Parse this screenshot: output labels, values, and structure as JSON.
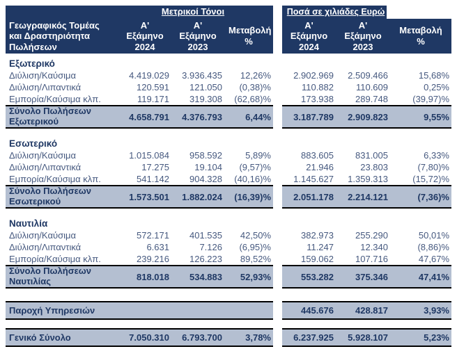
{
  "header": {
    "row_label": "Γεωγραφικός Τομέας και Δραστηριότητα Πωλήσεων",
    "group_left": "Μετρικοί Τόνοι",
    "group_right": "Ποσά σε χιλιάδες Ευρώ",
    "cols": [
      "Α' Εξάμηνο 2024",
      "Α' Εξάμηνο 2023",
      "Μεταβολή %"
    ]
  },
  "colors": {
    "header_bg": "#1f3864",
    "header_text": "#ffffff",
    "data_text": "#46597f",
    "emphasis_text": "#1f3864",
    "total_band_bg": "#b4bfd1",
    "total_band_border": "#000000"
  },
  "sections": [
    {
      "title": "Εξωτερικό",
      "rows": [
        {
          "label": "Διύλιση/Καύσιμα",
          "mt_2024": "4.419.029",
          "mt_2023": "3.936.435",
          "mt_chg": "12,26%",
          "eur_2024": "2.902.969",
          "eur_2023": "2.509.466",
          "eur_chg": "15,68%"
        },
        {
          "label": "Διύλιση/Λιπαντικά",
          "mt_2024": "120.591",
          "mt_2023": "121.050",
          "mt_chg": "(0,38)%",
          "eur_2024": "110.882",
          "eur_2023": "110.609",
          "eur_chg": "0,25%"
        },
        {
          "label": "Εμπορία/Καύσιμα κλπ.",
          "mt_2024": "119.171",
          "mt_2023": "319.308",
          "mt_chg": "(62,68)%",
          "eur_2024": "173.938",
          "eur_2023": "289.748",
          "eur_chg": "(39,97)%"
        }
      ],
      "total": {
        "label": "Σύνολο Πωλήσεων Εξωτερικού",
        "mt_2024": "4.658.791",
        "mt_2023": "4.376.793",
        "mt_chg": "6,44%",
        "eur_2024": "3.187.789",
        "eur_2023": "2.909.823",
        "eur_chg": "9,55%"
      }
    },
    {
      "title": "Εσωτερικό",
      "rows": [
        {
          "label": "Διύλιση/Καύσιμα",
          "mt_2024": "1.015.084",
          "mt_2023": "958.592",
          "mt_chg": "5,89%",
          "eur_2024": "883.605",
          "eur_2023": "831.005",
          "eur_chg": "6,33%"
        },
        {
          "label": "Διύλιση/Λιπαντικά",
          "mt_2024": "17.275",
          "mt_2023": "19.104",
          "mt_chg": "(9,57)%",
          "eur_2024": "21.946",
          "eur_2023": "23.803",
          "eur_chg": "(7,80)%"
        },
        {
          "label": "Εμπορία/Καύσιμα κλπ.",
          "mt_2024": "541.142",
          "mt_2023": "904.328",
          "mt_chg": "(40,16)%",
          "eur_2024": "1.145.627",
          "eur_2023": "1.359.313",
          "eur_chg": "(15,72)%"
        }
      ],
      "total": {
        "label": "Σύνολο Πωλήσεων Εσωτερικού",
        "mt_2024": "1.573.501",
        "mt_2023": "1.882.024",
        "mt_chg": "(16,39)%",
        "eur_2024": "2.051.178",
        "eur_2023": "2.214.121",
        "eur_chg": "(7,36)%"
      }
    },
    {
      "title": "Ναυτιλία",
      "rows": [
        {
          "label": "Διύλιση/Καύσιμα",
          "mt_2024": "572.171",
          "mt_2023": "401.535",
          "mt_chg": "42,50%",
          "eur_2024": "382.973",
          "eur_2023": "255.290",
          "eur_chg": "50,01%"
        },
        {
          "label": "Διύλιση/Λιπαντικά",
          "mt_2024": "6.631",
          "mt_2023": "7.126",
          "mt_chg": "(6,95)%",
          "eur_2024": "11.247",
          "eur_2023": "12.340",
          "eur_chg": "(8,86)%"
        },
        {
          "label": "Εμπορία/Καύσιμα κλπ.",
          "mt_2024": "239.216",
          "mt_2023": "126.223",
          "mt_chg": "89,52%",
          "eur_2024": "159.062",
          "eur_2023": "107.716",
          "eur_chg": "47,67%"
        }
      ],
      "total": {
        "label": "Σύνολο Πωλήσεων Ναυτιλίας",
        "mt_2024": "818.018",
        "mt_2023": "534.883",
        "mt_chg": "52,93%",
        "eur_2024": "553.282",
        "eur_2023": "375.346",
        "eur_chg": "47,41%"
      }
    }
  ],
  "service": {
    "label": "Παροχή Υπηρεσιών",
    "eur_2024": "445.676",
    "eur_2023": "428.817",
    "eur_chg": "3,93%"
  },
  "grand_total": {
    "label": "Γενικό Σύνολο",
    "mt_2024": "7.050.310",
    "mt_2023": "6.793.700",
    "mt_chg": "3,78%",
    "eur_2024": "6.237.925",
    "eur_2023": "5.928.107",
    "eur_chg": "5,23%"
  }
}
